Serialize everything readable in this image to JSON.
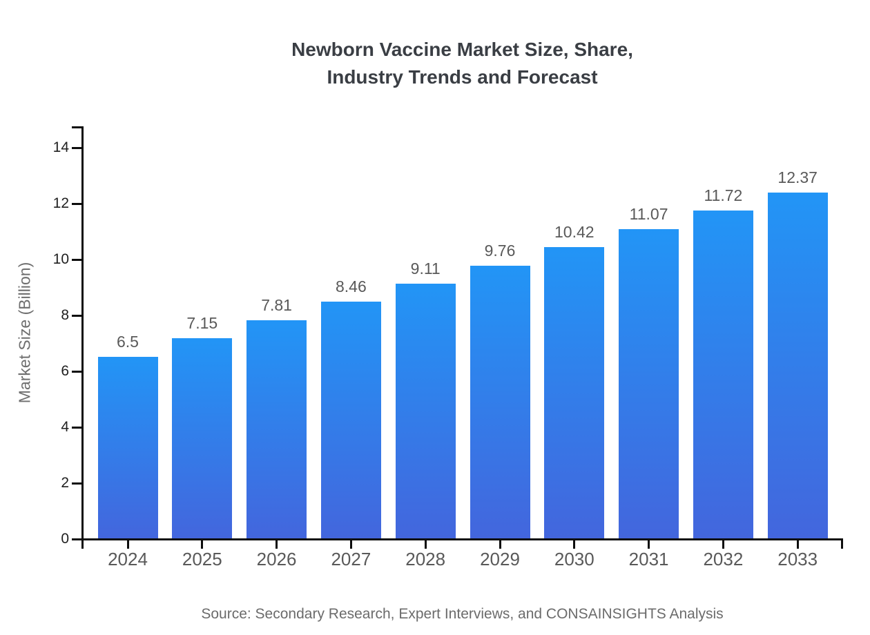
{
  "chart_data": {
    "type": "bar",
    "title_lines": [
      "Newborn Vaccine Market Size, Share,",
      "Industry Trends and Forecast"
    ],
    "title": "Newborn Vaccine Market Size, Share, Industry Trends and Forecast",
    "ylabel": "Market Size (Billion)",
    "xlabel": "",
    "categories": [
      "2024",
      "2025",
      "2026",
      "2027",
      "2028",
      "2029",
      "2030",
      "2031",
      "2032",
      "2033"
    ],
    "values": [
      6.5,
      7.15,
      7.81,
      8.46,
      9.11,
      9.76,
      10.42,
      11.07,
      11.72,
      12.37
    ],
    "y_ticks": [
      0,
      2,
      4,
      6,
      8,
      10,
      12,
      14
    ],
    "ylim": [
      0,
      14.75
    ],
    "grid": false,
    "legend_position": "none",
    "source": "Source: Secondary Research, Expert Interviews, and CONSAINSIGHTS Analysis",
    "colors": {
      "bar_gradient_top": "#2295f6",
      "bar_gradient_bottom": "#4366dd",
      "axis": "#0d0d0d",
      "y_tick_label": "#1f1f1f",
      "x_tick_label": "#595959",
      "value_label": "#595959",
      "title": "#3a3e44",
      "muted_text": "#6b6b6b"
    }
  }
}
